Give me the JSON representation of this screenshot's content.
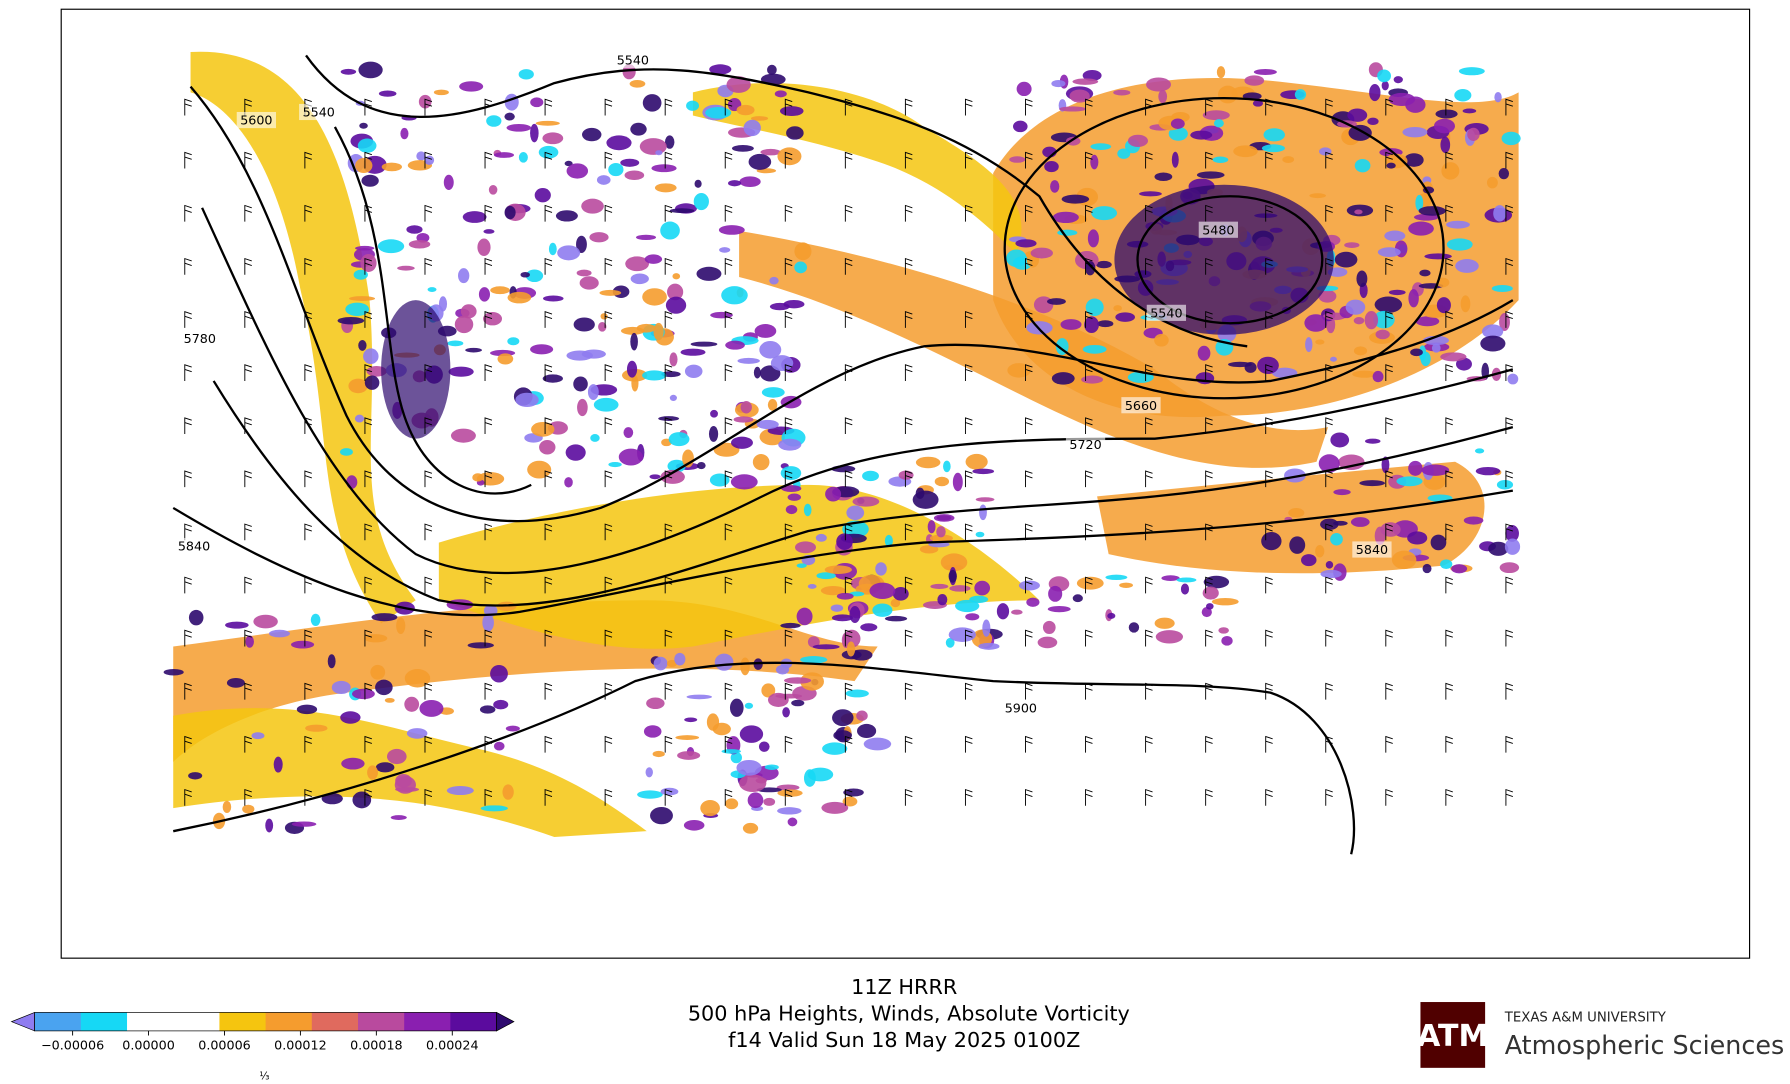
{
  "title": {
    "line1": "11Z HRRR",
    "line2": "500 hPa Heights, Winds, Absolute Vorticity",
    "line3": "f14 Valid Sun 18 May 2025 0100Z"
  },
  "contour_labels": [
    5540,
    5600,
    5540,
    5780,
    5840,
    5480,
    5540,
    5660,
    5720,
    5840,
    5900
  ],
  "colorbar": {
    "range": [
      -9e-05,
      0.000275
    ],
    "colors": [
      "#8f7cf0",
      "#4aa3f0",
      "#16d8f5",
      "#ffffff",
      "#ffffff",
      "#f5c50f",
      "#f59c2e",
      "#e06a5e",
      "#b94a9e",
      "#8a1fb0",
      "#5b0b9e",
      "#2e0a6e"
    ],
    "ticks": [
      {
        "value": -6e-05,
        "label": "−0.00006"
      },
      {
        "value": 0,
        "label": "0.00000"
      },
      {
        "value": 6e-05,
        "label": "0.00006"
      },
      {
        "value": 0.00012,
        "label": "0.00012"
      },
      {
        "value": 0.00018,
        "label": "0.00018"
      },
      {
        "value": 0.00024,
        "label": "0.00024"
      }
    ],
    "footnote": "⅓"
  },
  "logo": {
    "university": "TEXAS A&M UNIVERSITY",
    "department": "Atmospheric Sciences"
  }
}
